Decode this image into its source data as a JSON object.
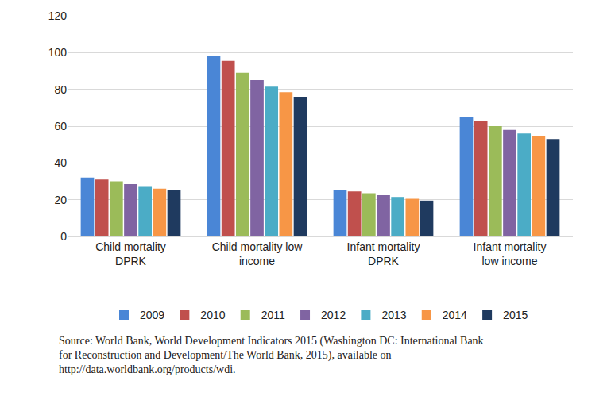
{
  "chart_data": {
    "type": "bar",
    "categories": [
      "Child mortality DPRK",
      "Child mortality low income",
      "Infant mortality DPRK",
      "Infant mortality low income"
    ],
    "series": [
      {
        "name": "2009",
        "color": "#4a86d6",
        "values": [
          32,
          98,
          25.5,
          65
        ]
      },
      {
        "name": "2010",
        "color": "#c0504d",
        "values": [
          31,
          95.5,
          24.5,
          63
        ]
      },
      {
        "name": "2011",
        "color": "#9bbb59",
        "values": [
          30,
          89,
          23.5,
          60
        ]
      },
      {
        "name": "2012",
        "color": "#8064a2",
        "values": [
          28.5,
          85,
          22.5,
          58
        ]
      },
      {
        "name": "2013",
        "color": "#4bacc6",
        "values": [
          27,
          81.5,
          21.5,
          56
        ]
      },
      {
        "name": "2014",
        "color": "#f79646",
        "values": [
          26,
          78.5,
          20.5,
          54.5
        ]
      },
      {
        "name": "2015",
        "color": "#1f3a5f",
        "values": [
          25,
          76,
          19.5,
          53
        ]
      }
    ],
    "ylim": [
      0,
      120
    ],
    "yticks": [
      0,
      20,
      40,
      60,
      80,
      100,
      120
    ],
    "grid": true,
    "legend": "bottom",
    "annotations": [
      "Source: World Bank, World Development Indicators 2015 (Washington DC: International Bank for Reconstruction and Development/The World Bank, 2015), available on http://data.worldbank.org/products/wdi."
    ]
  }
}
